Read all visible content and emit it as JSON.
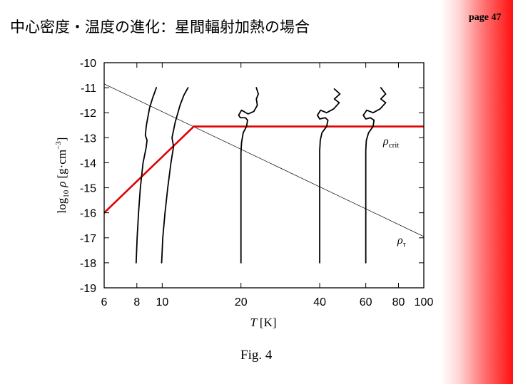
{
  "slide": {
    "title": "中心密度・温度の進化：星間輻射加熱の場合",
    "page": "page 47",
    "caption": "Fig. 4"
  },
  "colors": {
    "red_line": "#e00000",
    "side_gradient_end": "#ff1010"
  },
  "chart_data": {
    "type": "line",
    "x_scale": "log",
    "xlim": [
      6,
      100
    ],
    "ylim": [
      -19,
      -10
    ],
    "x_ticks": [
      6,
      8,
      10,
      20,
      40,
      60,
      80,
      100
    ],
    "x_tick_labels": [
      "6",
      "8",
      "10",
      "20",
      "40",
      "60",
      "80",
      "100"
    ],
    "y_ticks": [
      -10,
      -11,
      -12,
      -13,
      -14,
      -15,
      -16,
      -17,
      -18,
      -19
    ],
    "y_tick_labels": [
      "-10",
      "-11",
      "-12",
      "-13",
      "-14",
      "-15",
      "-16",
      "-17",
      "-18",
      "-19"
    ],
    "xlabel": {
      "symbol": "T",
      "unit": "[K]"
    },
    "ylabel": {
      "prefix": "log",
      "sub": "10",
      "symbol": "ρ",
      "unit": "[g·cm",
      "sup": "−3",
      "close": "]"
    },
    "annotations": {
      "rho_crit": {
        "symbol": "ρ",
        "sub": "crit"
      },
      "rho_tau": {
        "symbol": "ρ",
        "sub": "τ"
      }
    },
    "series": [
      {
        "style": "thin",
        "points": [
          [
            6,
            -10.85
          ],
          [
            100,
            -16.95
          ]
        ]
      },
      {
        "style": "red",
        "points": [
          [
            6,
            -16.0
          ],
          [
            13.2,
            -12.55
          ],
          [
            100,
            -12.55
          ]
        ]
      },
      {
        "style": "black",
        "points": [
          [
            7.95,
            -18
          ],
          [
            8.02,
            -17
          ],
          [
            8.12,
            -16
          ],
          [
            8.25,
            -15
          ],
          [
            8.45,
            -14
          ],
          [
            8.68,
            -13.4
          ],
          [
            8.75,
            -13.1
          ],
          [
            8.62,
            -12.9
          ],
          [
            8.7,
            -12.5
          ],
          [
            8.95,
            -11.8
          ],
          [
            9.2,
            -11.4
          ],
          [
            9.5,
            -11.0
          ]
        ]
      },
      {
        "style": "black",
        "points": [
          [
            9.95,
            -18
          ],
          [
            10.05,
            -17
          ],
          [
            10.25,
            -16
          ],
          [
            10.5,
            -15
          ],
          [
            10.8,
            -14
          ],
          [
            11.05,
            -13.35
          ],
          [
            10.9,
            -13.0
          ],
          [
            11.2,
            -12.4
          ],
          [
            11.7,
            -11.7
          ],
          [
            12.1,
            -11.3
          ],
          [
            12.55,
            -11.0
          ]
        ]
      },
      {
        "style": "black",
        "points": [
          [
            20,
            -18
          ],
          [
            20,
            -17
          ],
          [
            20,
            -16
          ],
          [
            20,
            -15
          ],
          [
            20,
            -14
          ],
          [
            20,
            -13.6
          ],
          [
            20.1,
            -13.2
          ],
          [
            20.4,
            -12.8
          ],
          [
            21.0,
            -12.55
          ],
          [
            21.2,
            -12.3
          ],
          [
            20.8,
            -12.2
          ],
          [
            19.9,
            -12.2
          ],
          [
            19.6,
            -12.1
          ],
          [
            20.1,
            -11.9
          ],
          [
            21.3,
            -12.05
          ],
          [
            22.4,
            -11.95
          ],
          [
            23.1,
            -11.7
          ],
          [
            22.9,
            -11.45
          ],
          [
            23.3,
            -11.25
          ],
          [
            22.9,
            -11.0
          ]
        ]
      },
      {
        "style": "black",
        "points": [
          [
            40,
            -18
          ],
          [
            40,
            -17
          ],
          [
            40,
            -16
          ],
          [
            40,
            -15
          ],
          [
            40,
            -14
          ],
          [
            40,
            -13.5
          ],
          [
            40.2,
            -13.1
          ],
          [
            40.8,
            -12.8
          ],
          [
            42.5,
            -12.55
          ],
          [
            43.0,
            -12.3
          ],
          [
            42.0,
            -12.2
          ],
          [
            40.0,
            -12.25
          ],
          [
            39.2,
            -12.1
          ],
          [
            40.3,
            -11.9
          ],
          [
            42.5,
            -12.0
          ],
          [
            45.2,
            -11.85
          ],
          [
            47.5,
            -11.6
          ],
          [
            45.5,
            -11.45
          ],
          [
            47.8,
            -11.25
          ],
          [
            45.5,
            -11.05
          ]
        ]
      },
      {
        "style": "black",
        "points": [
          [
            60,
            -18
          ],
          [
            60,
            -17
          ],
          [
            60,
            -16
          ],
          [
            60,
            -15
          ],
          [
            60,
            -14
          ],
          [
            60,
            -13.5
          ],
          [
            60.3,
            -13.1
          ],
          [
            61.5,
            -12.8
          ],
          [
            64.0,
            -12.55
          ],
          [
            64.5,
            -12.3
          ],
          [
            62.5,
            -12.2
          ],
          [
            60.0,
            -12.25
          ],
          [
            58.7,
            -12.1
          ],
          [
            60.5,
            -11.9
          ],
          [
            64.0,
            -12.0
          ],
          [
            68.0,
            -11.85
          ],
          [
            71.5,
            -11.6
          ],
          [
            68.5,
            -11.45
          ],
          [
            71.5,
            -11.25
          ],
          [
            68.5,
            -11.0
          ]
        ]
      }
    ]
  }
}
